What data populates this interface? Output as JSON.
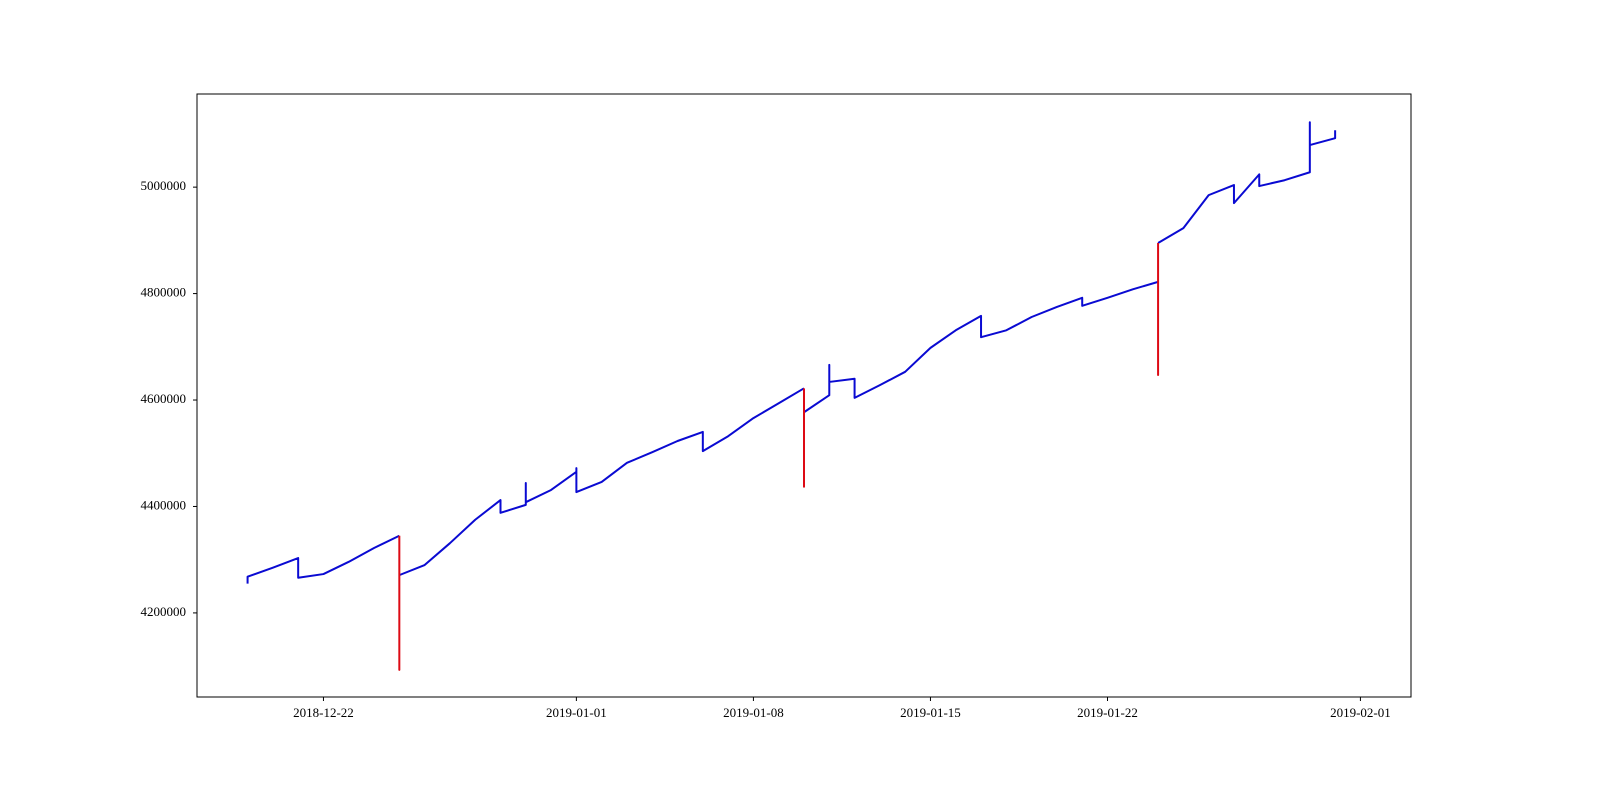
{
  "chart_data": {
    "type": "line",
    "x": [
      "2018-12-19",
      "2018-12-19",
      "2018-12-20",
      "2018-12-21",
      "2018-12-21",
      "2018-12-22",
      "2018-12-23",
      "2018-12-24",
      "2018-12-25",
      "2018-12-25",
      "2018-12-25",
      "2018-12-25",
      "2018-12-26",
      "2018-12-27",
      "2018-12-28",
      "2018-12-29",
      "2018-12-29",
      "2018-12-30",
      "2018-12-30",
      "2018-12-30",
      "2018-12-31",
      "2019-01-01",
      "2019-01-01",
      "2019-01-01",
      "2019-01-02",
      "2019-01-03",
      "2019-01-04",
      "2019-01-05",
      "2019-01-06",
      "2019-01-06",
      "2019-01-07",
      "2019-01-08",
      "2019-01-09",
      "2019-01-10",
      "2019-01-10",
      "2019-01-10",
      "2019-01-10",
      "2019-01-10",
      "2019-01-11",
      "2019-01-11",
      "2019-01-11",
      "2019-01-12",
      "2019-01-12",
      "2019-01-13",
      "2019-01-14",
      "2019-01-15",
      "2019-01-16",
      "2019-01-17",
      "2019-01-17",
      "2019-01-18",
      "2019-01-19",
      "2019-01-20",
      "2019-01-21",
      "2019-01-21",
      "2019-01-22",
      "2019-01-23",
      "2019-01-24",
      "2019-01-24",
      "2019-01-24",
      "2019-01-24",
      "2019-01-25",
      "2019-01-26",
      "2019-01-27",
      "2019-01-27",
      "2019-01-28",
      "2019-01-28",
      "2019-01-29",
      "2019-01-30",
      "2019-01-30",
      "2019-01-30",
      "2019-01-31",
      "2019-01-31"
    ],
    "series": [
      {
        "color": "#0a0ad2",
        "values": [
          4255000,
          4268000,
          4285000,
          4303000,
          4266000,
          4273000,
          4296000,
          4322000,
          4345000,
          null,
          null,
          4271000,
          4290000,
          4331000,
          4375000,
          4412000,
          4388000,
          4403000,
          4444000,
          4408000,
          4431000,
          4465000,
          4472000,
          4427000,
          4446000,
          4482000,
          4502000,
          4523000,
          4540000,
          4504000,
          4532000,
          4566000,
          4594000,
          4622000,
          null,
          null,
          4585000,
          4577000,
          4609000,
          4666000,
          4634000,
          4640000,
          4604000,
          4628000,
          4653000,
          4698000,
          4731000,
          4758000,
          4718000,
          4731000,
          4756000,
          4775000,
          4792000,
          4777000,
          4792000,
          4808000,
          4822000,
          null,
          null,
          4895000,
          4923000,
          4985000,
          5004000,
          4970000,
          5024000,
          5002000,
          5013000,
          5028000,
          5122000,
          5079000,
          5092000,
          5107000
        ]
      },
      {
        "color": "#dd0a14",
        "values": [
          null,
          null,
          null,
          null,
          null,
          null,
          null,
          null,
          4345000,
          4230000,
          4093000,
          4271000,
          null,
          null,
          null,
          null,
          null,
          null,
          null,
          null,
          null,
          null,
          null,
          null,
          null,
          null,
          null,
          null,
          null,
          null,
          null,
          null,
          null,
          4622000,
          4550000,
          4437000,
          4585000,
          null,
          null,
          null,
          null,
          null,
          null,
          null,
          null,
          null,
          null,
          null,
          null,
          null,
          null,
          null,
          null,
          null,
          null,
          null,
          4822000,
          4730000,
          4647000,
          4895000,
          null,
          null,
          null,
          null,
          null,
          null,
          null,
          null,
          null,
          null,
          null,
          null
        ]
      }
    ],
    "xlim": [
      "2018-12-17",
      "2019-02-03"
    ],
    "xticks": [
      "2018-12-22",
      "2019-01-01",
      "2019-01-08",
      "2019-01-15",
      "2019-01-22",
      "2019-02-01"
    ],
    "ylim": [
      4042000,
      5175000
    ],
    "yticks": [
      4200000,
      4400000,
      4600000,
      4800000,
      5000000
    ],
    "grid": false
  }
}
